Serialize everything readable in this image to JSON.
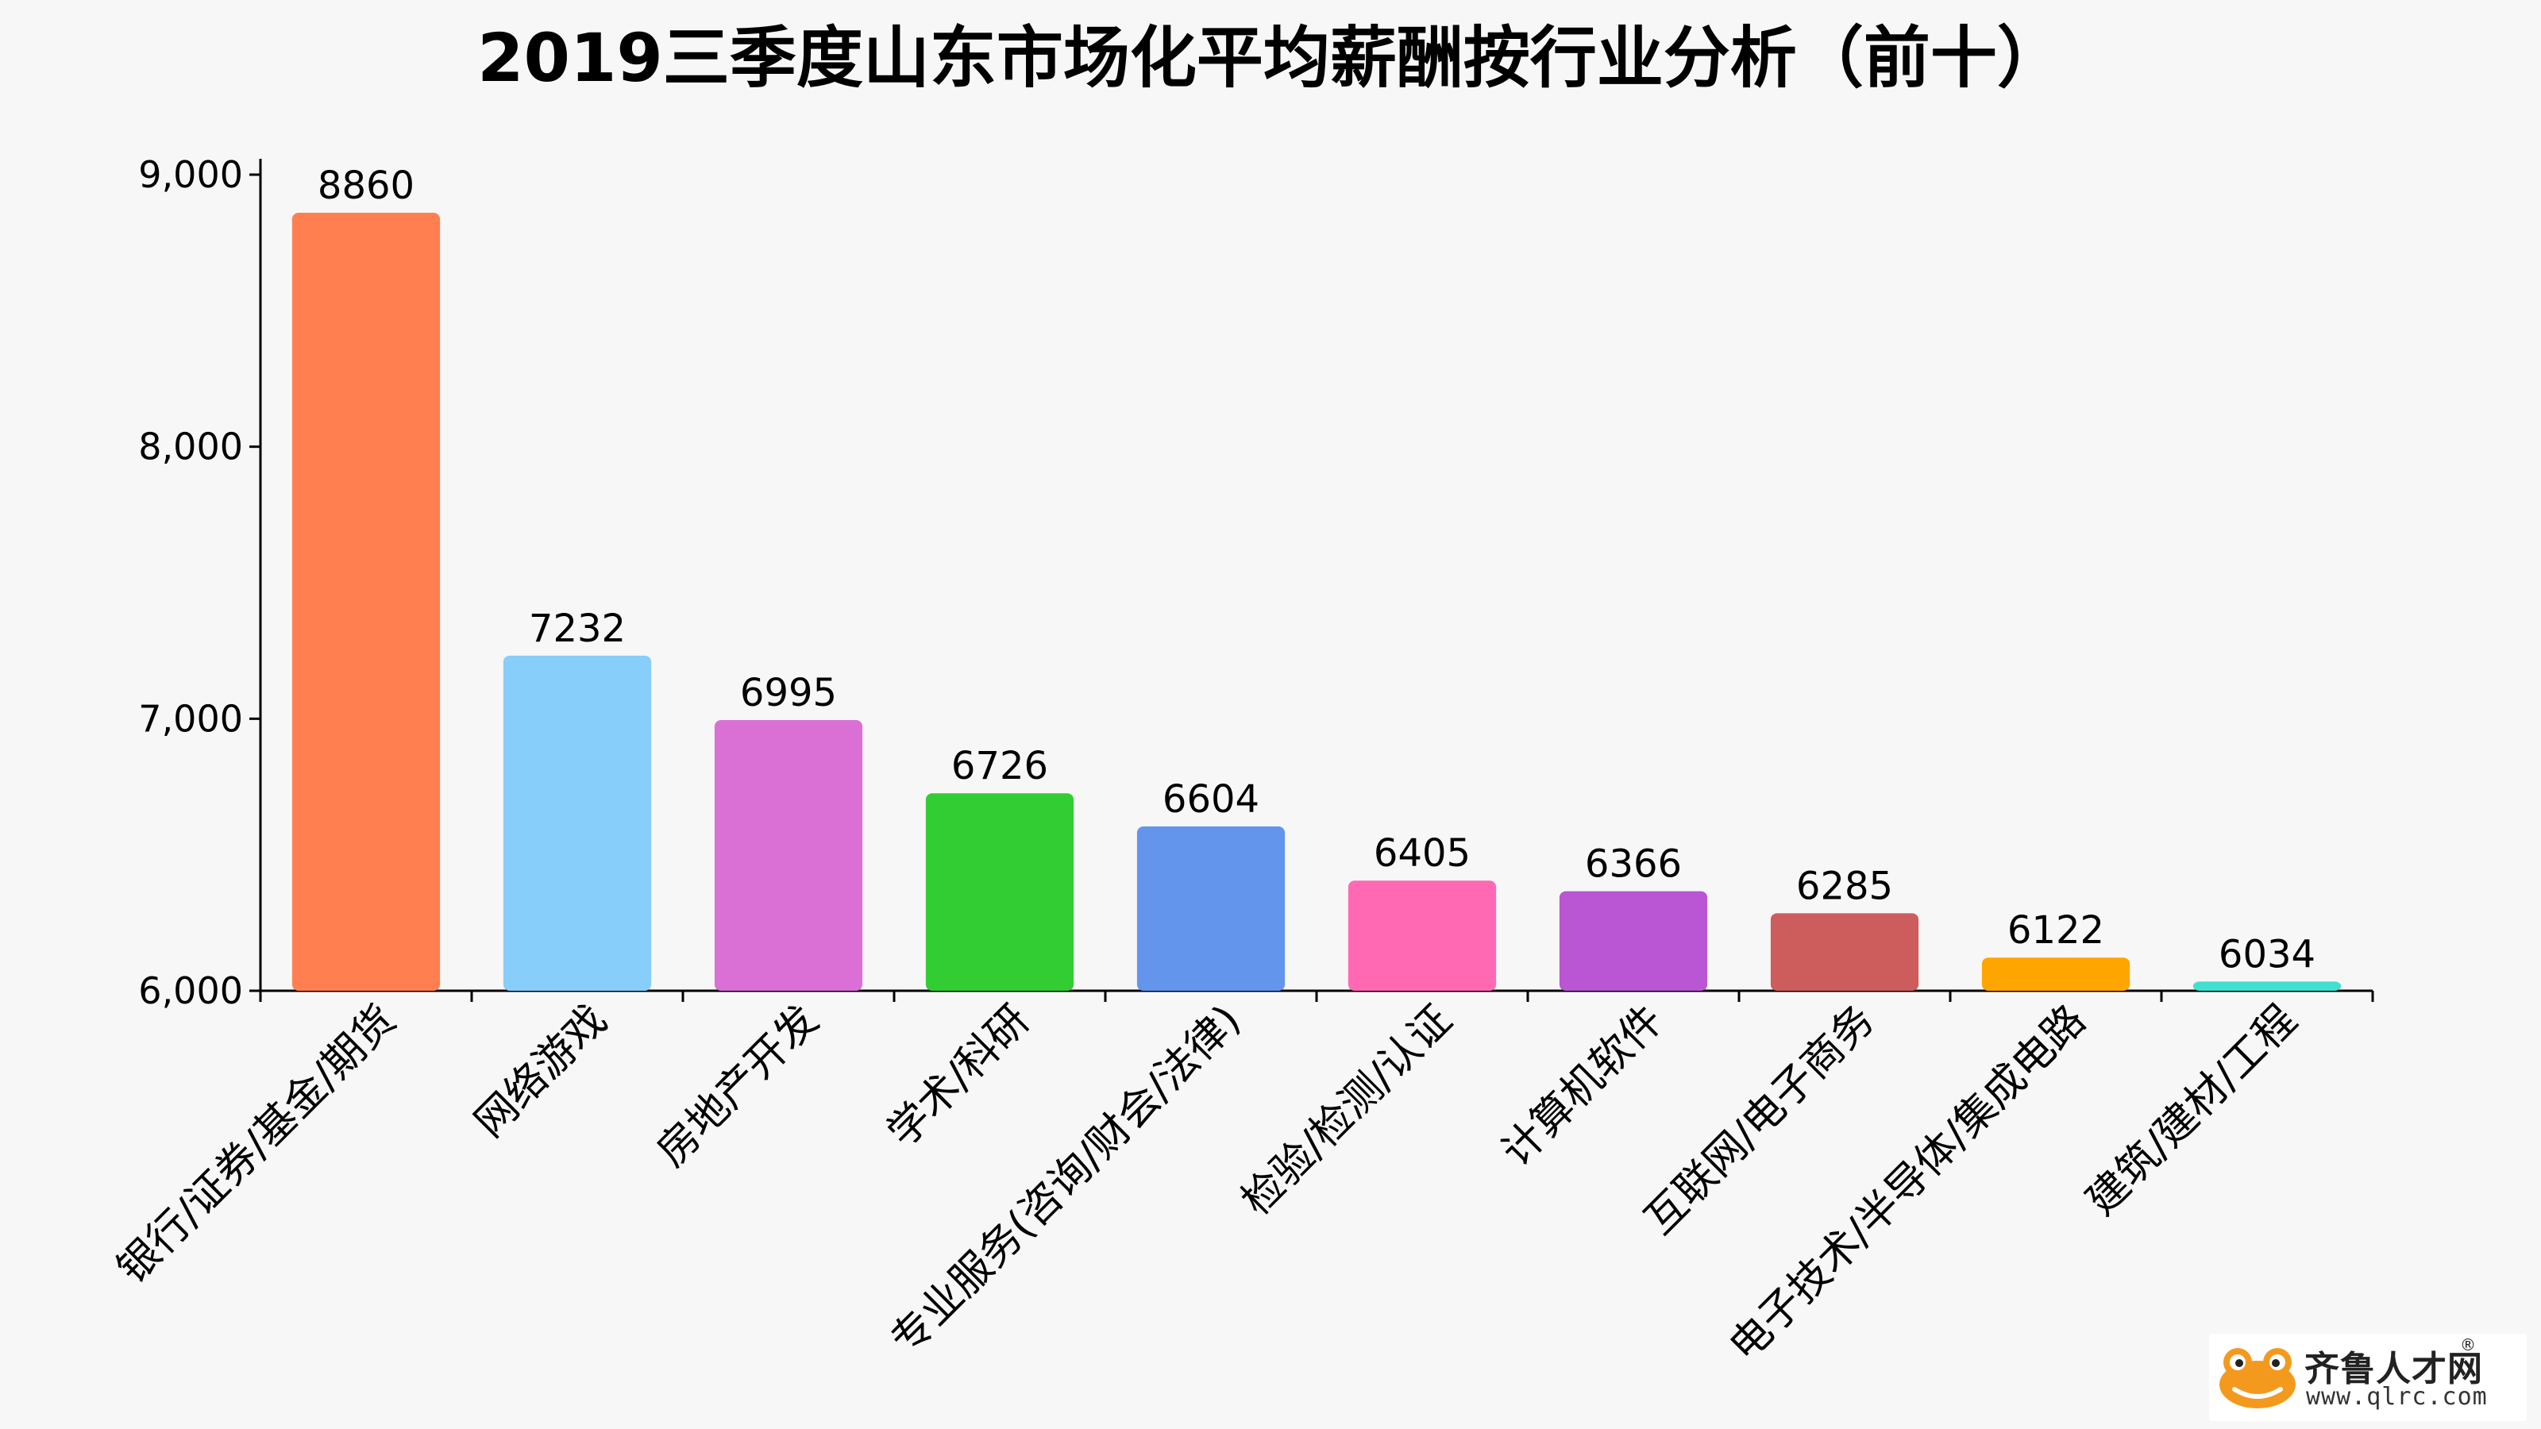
{
  "chart_data": {
    "type": "bar",
    "title": "2019三季度山东市场化平均薪酬按行业分析（前十）",
    "categories": [
      "银行/证券/基金/期货",
      "网络游戏",
      "房地产开发",
      "学术/科研",
      "专业服务(咨询/财会/法律)",
      "检验/检测/认证",
      "计算机软件",
      "互联网/电子商务",
      "电子技术/半导体/集成电路",
      "建筑/建材/工程"
    ],
    "values": [
      8860,
      7232,
      6995,
      6726,
      6604,
      6405,
      6366,
      6285,
      6122,
      6034
    ],
    "colors": [
      "#ff7f50",
      "#87cefa",
      "#da70d6",
      "#32cd32",
      "#6495ed",
      "#ff69b4",
      "#ba55d3",
      "#cd5c5c",
      "#ffa500",
      "#40e0d0"
    ],
    "ylim": [
      6000,
      9000
    ],
    "yticks": [
      6000,
      7000,
      8000,
      9000
    ],
    "ytick_labels": [
      "6,000",
      "7,000",
      "8,000",
      "9,000"
    ],
    "xlabel": "",
    "ylabel": "",
    "grid": false,
    "legend": "none"
  },
  "watermark": {
    "name": "齐鲁人才网",
    "registered": "®",
    "url": "www.qlrc.com",
    "icon": "frog-logo-icon"
  }
}
